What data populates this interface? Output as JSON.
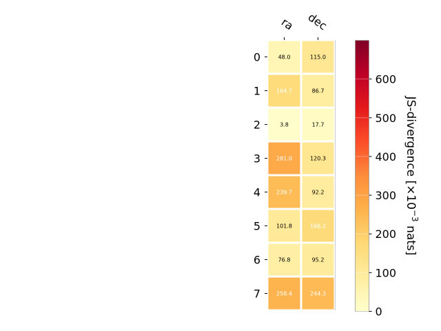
{
  "chart_data": {
    "type": "heatmap",
    "title": "",
    "columns": [
      "ra",
      "dec"
    ],
    "rows": [
      "0",
      "1",
      "2",
      "3",
      "4",
      "5",
      "6",
      "7"
    ],
    "values": [
      [
        48.0,
        115.0
      ],
      [
        164.7,
        86.7
      ],
      [
        3.8,
        17.7
      ],
      [
        281.0,
        120.3
      ],
      [
        239.7,
        92.2
      ],
      [
        101.8,
        166.2
      ],
      [
        76.8,
        95.2
      ],
      [
        258.4,
        244.3
      ]
    ],
    "value_labels": [
      [
        "48.0",
        "115.0"
      ],
      [
        "164.7",
        "86.7"
      ],
      [
        "3.8",
        "17.7"
      ],
      [
        "281.0",
        "120.3"
      ],
      [
        "239.7",
        "92.2"
      ],
      [
        "101.8",
        "166.2"
      ],
      [
        "76.8",
        "95.2"
      ],
      [
        "258.4",
        "244.3"
      ]
    ],
    "colormap": "YlOrRd",
    "colorbar": {
      "label_main": "JS-divergence [×10",
      "label_exp": "−3",
      "label_unit": " nats]",
      "range": [
        0,
        700
      ],
      "ticks": [
        0,
        100,
        200,
        300,
        400,
        500,
        600
      ],
      "tick_labels": [
        "0",
        "100",
        "200",
        "300",
        "400",
        "500",
        "600"
      ]
    },
    "grid": false,
    "colors": {
      "cell_border": "#ffffff",
      "text_dark": "#000000",
      "text_light": "#ffffff"
    }
  }
}
